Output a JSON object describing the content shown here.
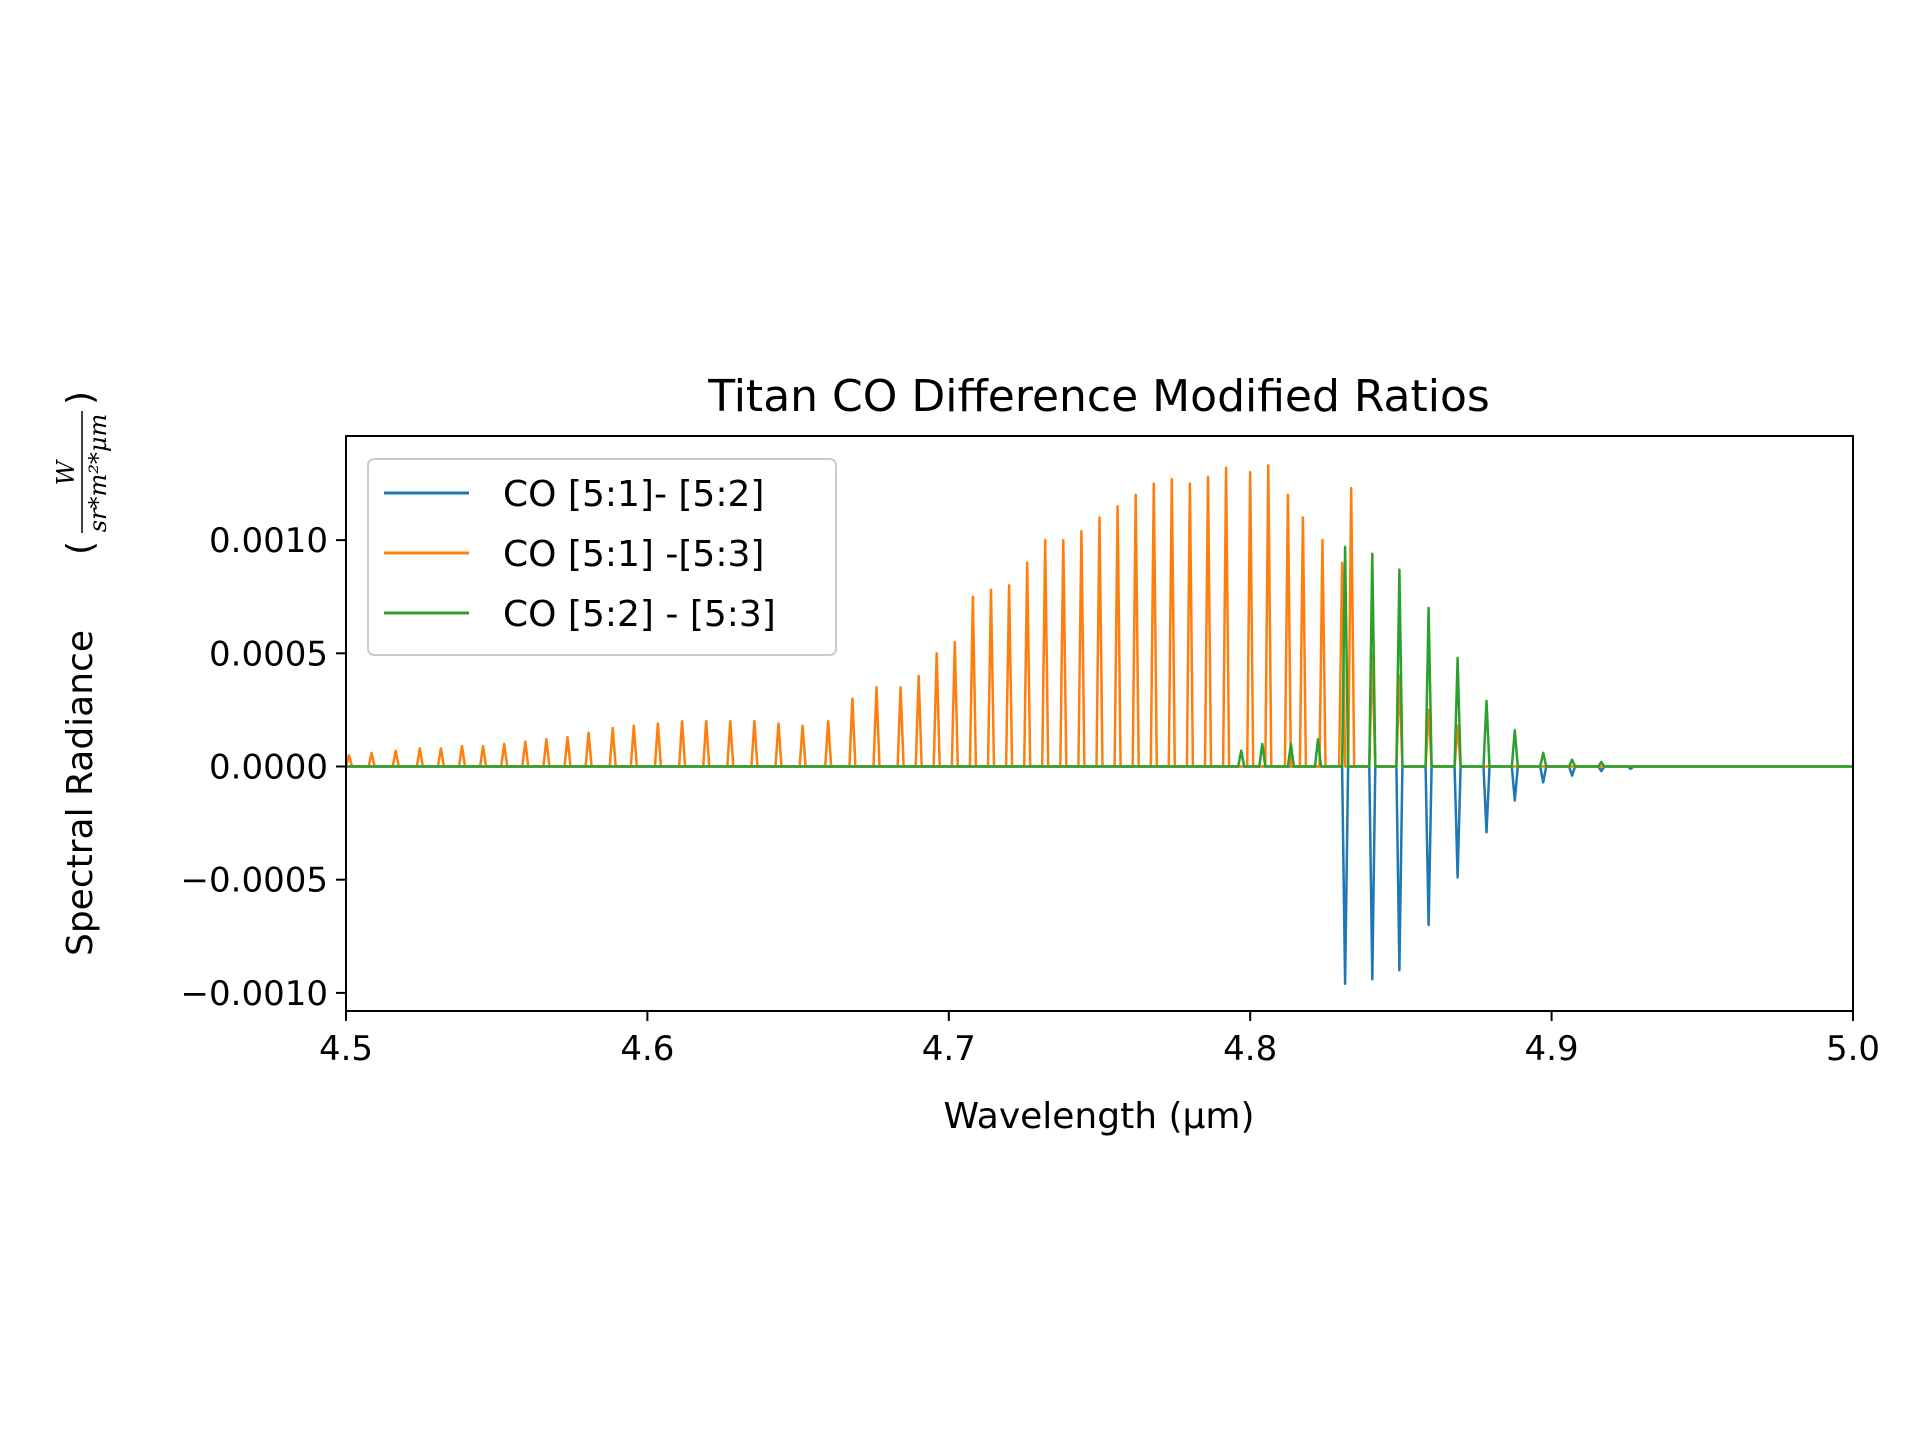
{
  "chart_data": {
    "type": "line",
    "title": "Titan CO Difference Modified Ratios",
    "xlabel": "Wavelength (μm)",
    "ylabel": "Spectral Radiance",
    "ylabel_unit_numerator": "W",
    "ylabel_unit_denominator": "sr*m²*μm",
    "xlim": [
      4.5,
      5.0
    ],
    "ylim": [
      -0.00108,
      0.00146
    ],
    "x_ticks": [
      4.5,
      4.6,
      4.7,
      4.8,
      4.9,
      5.0
    ],
    "x_tick_labels": [
      "4.5",
      "4.6",
      "4.7",
      "4.8",
      "4.9",
      "5.0"
    ],
    "y_ticks": [
      0.001,
      0.0005,
      0.0,
      -0.0005,
      -0.001
    ],
    "y_tick_labels": [
      "0.0010",
      "0.0005",
      "0.0000",
      "−0.0005",
      "−0.0010"
    ],
    "legend_position": "top-left",
    "grid": false,
    "series": [
      {
        "name": "CO [5:1]- [5:2]",
        "color": "#1f77b4",
        "note": "Follows the orange series below 4.83 μm; line peaks are negative from 4.83 μm onwards.",
        "lines": [
          {
            "x": 4.8315,
            "y": -0.00096
          },
          {
            "x": 4.8405,
            "y": -0.00094
          },
          {
            "x": 4.8495,
            "y": -0.0009
          },
          {
            "x": 4.8592,
            "y": -0.0007
          },
          {
            "x": 4.8688,
            "y": -0.00049
          },
          {
            "x": 4.8784,
            "y": -0.00029
          },
          {
            "x": 4.8878,
            "y": -0.00015
          },
          {
            "x": 4.8972,
            "y": -7e-05
          },
          {
            "x": 4.9068,
            "y": -4e-05
          },
          {
            "x": 4.9165,
            "y": -2e-05
          },
          {
            "x": 4.9262,
            "y": -1e-05
          }
        ]
      },
      {
        "name": "CO [5:1] -[5:3]",
        "color": "#ff7f0e",
        "lines": [
          {
            "x": 4.501,
            "y": 5e-05
          },
          {
            "x": 4.5085,
            "y": 6e-05
          },
          {
            "x": 4.5165,
            "y": 7e-05
          },
          {
            "x": 4.5245,
            "y": 8e-05
          },
          {
            "x": 4.5315,
            "y": 8e-05
          },
          {
            "x": 4.5385,
            "y": 9e-05
          },
          {
            "x": 4.5455,
            "y": 9e-05
          },
          {
            "x": 4.5525,
            "y": 0.0001
          },
          {
            "x": 4.5595,
            "y": 0.00011
          },
          {
            "x": 4.5665,
            "y": 0.00012
          },
          {
            "x": 4.5735,
            "y": 0.00013
          },
          {
            "x": 4.5805,
            "y": 0.00015
          },
          {
            "x": 4.5885,
            "y": 0.00017
          },
          {
            "x": 4.5955,
            "y": 0.00018
          },
          {
            "x": 4.6035,
            "y": 0.00019
          },
          {
            "x": 4.6115,
            "y": 0.0002
          },
          {
            "x": 4.6195,
            "y": 0.0002
          },
          {
            "x": 4.6275,
            "y": 0.0002
          },
          {
            "x": 4.6355,
            "y": 0.0002
          },
          {
            "x": 4.6435,
            "y": 0.00019
          },
          {
            "x": 4.6515,
            "y": 0.00018
          },
          {
            "x": 4.66,
            "y": 0.0002
          },
          {
            "x": 4.668,
            "y": 0.0003
          },
          {
            "x": 4.676,
            "y": 0.00035
          },
          {
            "x": 4.684,
            "y": 0.00035
          },
          {
            "x": 4.69,
            "y": 0.0004
          },
          {
            "x": 4.696,
            "y": 0.0005
          },
          {
            "x": 4.702,
            "y": 0.00055
          },
          {
            "x": 4.708,
            "y": 0.00075
          },
          {
            "x": 4.714,
            "y": 0.00078
          },
          {
            "x": 4.72,
            "y": 0.0008
          },
          {
            "x": 4.726,
            "y": 0.0009
          },
          {
            "x": 4.732,
            "y": 0.001
          },
          {
            "x": 4.738,
            "y": 0.001
          },
          {
            "x": 4.744,
            "y": 0.00104
          },
          {
            "x": 4.75,
            "y": 0.0011
          },
          {
            "x": 4.756,
            "y": 0.00115
          },
          {
            "x": 4.762,
            "y": 0.0012
          },
          {
            "x": 4.768,
            "y": 0.00125
          },
          {
            "x": 4.774,
            "y": 0.00127
          },
          {
            "x": 4.78,
            "y": 0.00125
          },
          {
            "x": 4.786,
            "y": 0.00128
          },
          {
            "x": 4.792,
            "y": 0.00132
          },
          {
            "x": 4.8,
            "y": 0.0013
          },
          {
            "x": 4.806,
            "y": 0.00133
          },
          {
            "x": 4.8125,
            "y": 0.0012
          },
          {
            "x": 4.8175,
            "y": 0.0011
          },
          {
            "x": 4.824,
            "y": 0.001
          },
          {
            "x": 4.8305,
            "y": 0.0009
          },
          {
            "x": 4.8335,
            "y": 0.00123
          },
          {
            "x": 4.8405,
            "y": 0.0005
          },
          {
            "x": 4.8495,
            "y": 0.0004
          },
          {
            "x": 4.8592,
            "y": 0.00025
          },
          {
            "x": 4.8688,
            "y": 0.00018
          }
        ]
      },
      {
        "name": "CO [5:2] - [5:3]",
        "color": "#2ca02c",
        "lines": [
          {
            "x": 4.797,
            "y": 7e-05
          },
          {
            "x": 4.804,
            "y": 0.0001
          },
          {
            "x": 4.8135,
            "y": 0.0001
          },
          {
            "x": 4.8225,
            "y": 0.00012
          },
          {
            "x": 4.8315,
            "y": 0.00097
          },
          {
            "x": 4.8405,
            "y": 0.00094
          },
          {
            "x": 4.8495,
            "y": 0.00087
          },
          {
            "x": 4.8592,
            "y": 0.0007
          },
          {
            "x": 4.8688,
            "y": 0.00048
          },
          {
            "x": 4.8784,
            "y": 0.00029
          },
          {
            "x": 4.8878,
            "y": 0.00016
          },
          {
            "x": 4.8972,
            "y": 6e-05
          },
          {
            "x": 4.9068,
            "y": 3e-05
          },
          {
            "x": 4.9165,
            "y": 2e-05
          }
        ]
      }
    ]
  }
}
